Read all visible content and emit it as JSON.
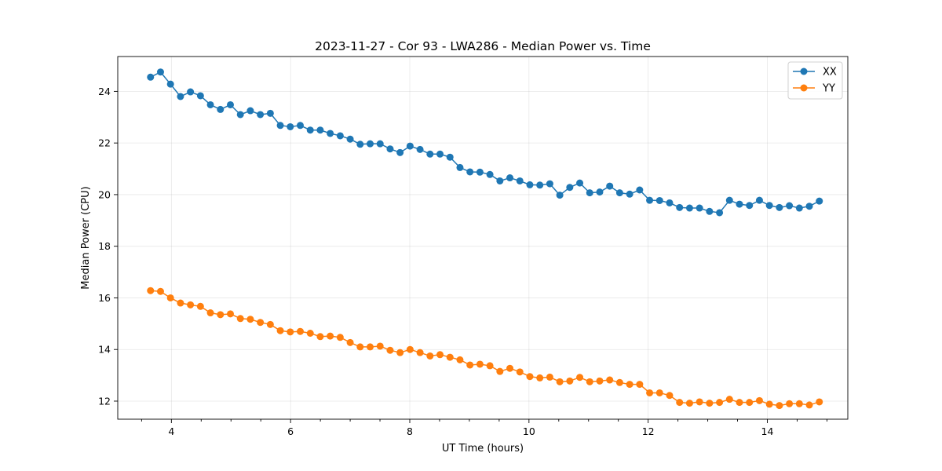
{
  "chart_data": {
    "type": "line",
    "title": "2023-11-27 - Cor 93 - LWA286 - Median Power vs. Time",
    "xlabel": "UT Time (hours)",
    "ylabel": "Median Power (CPU)",
    "xlim": [
      3.1,
      15.35
    ],
    "ylim": [
      11.3,
      25.35
    ],
    "xticks": [
      4,
      6,
      8,
      10,
      12,
      14
    ],
    "xtick_labels": [
      "4",
      "6",
      "8",
      "10",
      "12",
      "14"
    ],
    "yticks": [
      12,
      14,
      16,
      18,
      20,
      22,
      24
    ],
    "ytick_labels": [
      "12",
      "14",
      "16",
      "18",
      "20",
      "22",
      "24"
    ],
    "x_minor_step": 0.5,
    "grid": true,
    "legend_position": "top-right",
    "x_start": 3.65,
    "x_step": 0.1675,
    "series": [
      {
        "name": "XX",
        "color": "#1f77b4",
        "values": [
          24.55,
          24.75,
          24.28,
          23.8,
          23.98,
          23.83,
          23.48,
          23.3,
          23.48,
          23.1,
          23.25,
          23.1,
          23.15,
          22.68,
          22.63,
          22.68,
          22.5,
          22.5,
          22.37,
          22.28,
          22.15,
          21.95,
          21.97,
          21.97,
          21.77,
          21.63,
          21.88,
          21.75,
          21.57,
          21.57,
          21.45,
          21.05,
          20.88,
          20.87,
          20.78,
          20.53,
          20.65,
          20.53,
          20.38,
          20.37,
          20.42,
          19.98,
          20.28,
          20.45,
          20.07,
          20.1,
          20.33,
          20.07,
          20.02,
          20.18,
          19.78,
          19.77,
          19.68,
          19.5,
          19.48,
          19.48,
          19.35,
          19.3,
          19.78,
          19.63,
          19.58,
          19.78,
          19.58,
          19.5,
          19.57,
          19.48,
          19.55,
          19.75
        ]
      },
      {
        "name": "YY",
        "color": "#ff7f0e",
        "values": [
          16.28,
          16.25,
          16.0,
          15.8,
          15.73,
          15.67,
          15.42,
          15.35,
          15.38,
          15.2,
          15.17,
          15.05,
          14.97,
          14.73,
          14.68,
          14.7,
          14.63,
          14.5,
          14.52,
          14.47,
          14.27,
          14.1,
          14.1,
          14.13,
          13.97,
          13.88,
          14.0,
          13.88,
          13.75,
          13.8,
          13.7,
          13.6,
          13.4,
          13.43,
          13.37,
          13.15,
          13.27,
          13.13,
          12.95,
          12.9,
          12.93,
          12.75,
          12.78,
          12.92,
          12.75,
          12.78,
          12.82,
          12.72,
          12.65,
          12.65,
          12.32,
          12.32,
          12.22,
          11.95,
          11.92,
          11.97,
          11.92,
          11.95,
          12.07,
          11.95,
          11.95,
          12.02,
          11.88,
          11.83,
          11.9,
          11.9,
          11.85,
          11.97
        ]
      }
    ]
  }
}
